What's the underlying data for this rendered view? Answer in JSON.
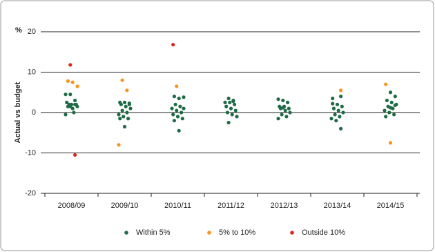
{
  "chart_data": {
    "type": "strip",
    "y_label": "Actual vs budget",
    "y_unit": "%",
    "categories": [
      "2008/09",
      "2009/10",
      "2010/11",
      "2011/12",
      "2012/13",
      "2013/14",
      "2014/15"
    ],
    "ylim": [
      -20,
      20
    ],
    "yticks": [
      20,
      10,
      0,
      -10,
      -20
    ],
    "grid": true,
    "legend": "bottom",
    "series": [
      {
        "name": "Within 5%",
        "color": "#1e6b45",
        "categories": [
          "2008/09",
          "2008/09",
          "2008/09",
          "2008/09",
          "2008/09",
          "2008/09",
          "2008/09",
          "2008/09",
          "2008/09",
          "2008/09",
          "2008/09",
          "2008/09",
          "2008/09",
          "2008/09",
          "2009/10",
          "2009/10",
          "2009/10",
          "2009/10",
          "2009/10",
          "2009/10",
          "2009/10",
          "2009/10",
          "2009/10",
          "2009/10",
          "2009/10",
          "2009/10",
          "2009/10",
          "2009/10",
          "2010/11",
          "2010/11",
          "2010/11",
          "2010/11",
          "2010/11",
          "2010/11",
          "2010/11",
          "2010/11",
          "2010/11",
          "2010/11",
          "2010/11",
          "2010/11",
          "2010/11",
          "2010/11",
          "2011/12",
          "2011/12",
          "2011/12",
          "2011/12",
          "2011/12",
          "2011/12",
          "2011/12",
          "2011/12",
          "2011/12",
          "2011/12",
          "2011/12",
          "2011/12",
          "2011/12",
          "2012/13",
          "2012/13",
          "2012/13",
          "2012/13",
          "2012/13",
          "2012/13",
          "2012/13",
          "2012/13",
          "2012/13",
          "2012/13",
          "2012/13",
          "2012/13",
          "2012/13",
          "2013/14",
          "2013/14",
          "2013/14",
          "2013/14",
          "2013/14",
          "2013/14",
          "2013/14",
          "2013/14",
          "2013/14",
          "2013/14",
          "2013/14",
          "2013/14",
          "2013/14",
          "2014/15",
          "2014/15",
          "2014/15",
          "2014/15",
          "2014/15",
          "2014/15",
          "2014/15",
          "2014/15",
          "2014/15",
          "2014/15",
          "2014/15",
          "2014/15",
          "2014/15"
        ],
        "values": [
          4.5,
          4.5,
          3,
          2.5,
          2,
          2,
          1.5,
          1,
          1.5,
          2,
          0,
          -0.5,
          1.5,
          2,
          2.5,
          2.5,
          2.3,
          2,
          1.5,
          1,
          0.5,
          0,
          -0.5,
          -1,
          -1.5,
          -1.5,
          -3.5,
          2,
          4,
          3.5,
          3.8,
          2,
          1.5,
          1,
          0.5,
          0,
          -0.5,
          -1,
          -1.5,
          -2,
          -4.5,
          1,
          3.5,
          3,
          2.5,
          2.5,
          2,
          1.5,
          1,
          0.5,
          0,
          -0.5,
          -1,
          -2.5,
          2.8,
          3.3,
          3,
          2.5,
          1.5,
          1.5,
          1,
          1,
          0.5,
          0,
          -0.5,
          -1,
          -1.5,
          1.2,
          4,
          3.5,
          2,
          1.5,
          1,
          0.5,
          0,
          -0.5,
          -1,
          -1.5,
          -2,
          -4,
          2.2,
          5,
          4,
          3,
          2.5,
          2,
          1.5,
          1,
          0.5,
          0,
          -0.5,
          -1,
          1.2,
          1.8
        ]
      },
      {
        "name": "5% to 10%",
        "color": "#f7941d",
        "categories": [
          "2008/09",
          "2008/09",
          "2008/09",
          "2009/10",
          "2009/10",
          "2009/10",
          "2010/11",
          "2013/14",
          "2014/15",
          "2014/15"
        ],
        "values": [
          7.8,
          7.5,
          6.5,
          8,
          5.5,
          -8,
          6.5,
          5.5,
          7,
          -7.5
        ]
      },
      {
        "name": "Outside 10%",
        "color": "#e2231a",
        "categories": [
          "2008/09",
          "2008/09",
          "2010/11"
        ],
        "values": [
          11.8,
          -10.5,
          16.8
        ]
      }
    ]
  }
}
